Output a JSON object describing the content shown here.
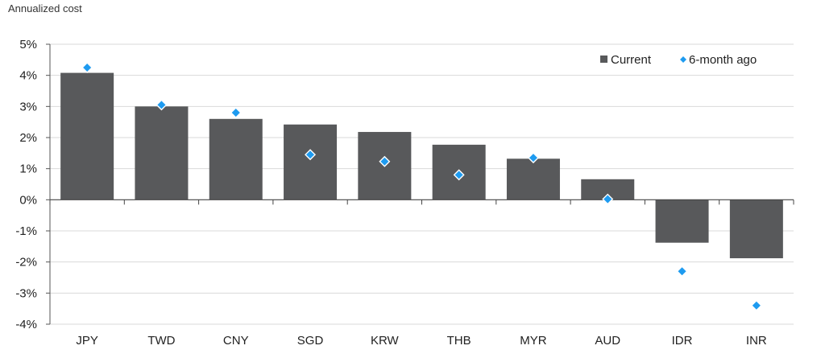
{
  "chart_data": {
    "type": "bar",
    "title": "Annualized cost",
    "xlabel": "",
    "ylabel": "",
    "categories": [
      "JPY",
      "TWD",
      "CNY",
      "SGD",
      "KRW",
      "THB",
      "MYR",
      "AUD",
      "IDR",
      "INR"
    ],
    "ylim": [
      -4,
      5
    ],
    "yticks": [
      5,
      4,
      3,
      2,
      1,
      0,
      -1,
      -2,
      -3,
      -4
    ],
    "ytick_labels": [
      "5%",
      "4%",
      "3%",
      "2%",
      "1%",
      "0%",
      "-1%",
      "-2%",
      "-3%",
      "-4%"
    ],
    "grid": true,
    "legend_position": "top-right",
    "series": [
      {
        "name": "Current",
        "kind": "bar",
        "color": "#58595b",
        "values": [
          4.08,
          3.0,
          2.6,
          2.42,
          2.18,
          1.77,
          1.32,
          0.66,
          -1.38,
          -1.88
        ]
      },
      {
        "name": "6-month ago",
        "kind": "marker",
        "color": "#1e9bf0",
        "values": [
          4.25,
          3.05,
          2.8,
          1.45,
          1.23,
          0.8,
          1.35,
          0.02,
          -2.3,
          -3.4
        ]
      }
    ]
  }
}
